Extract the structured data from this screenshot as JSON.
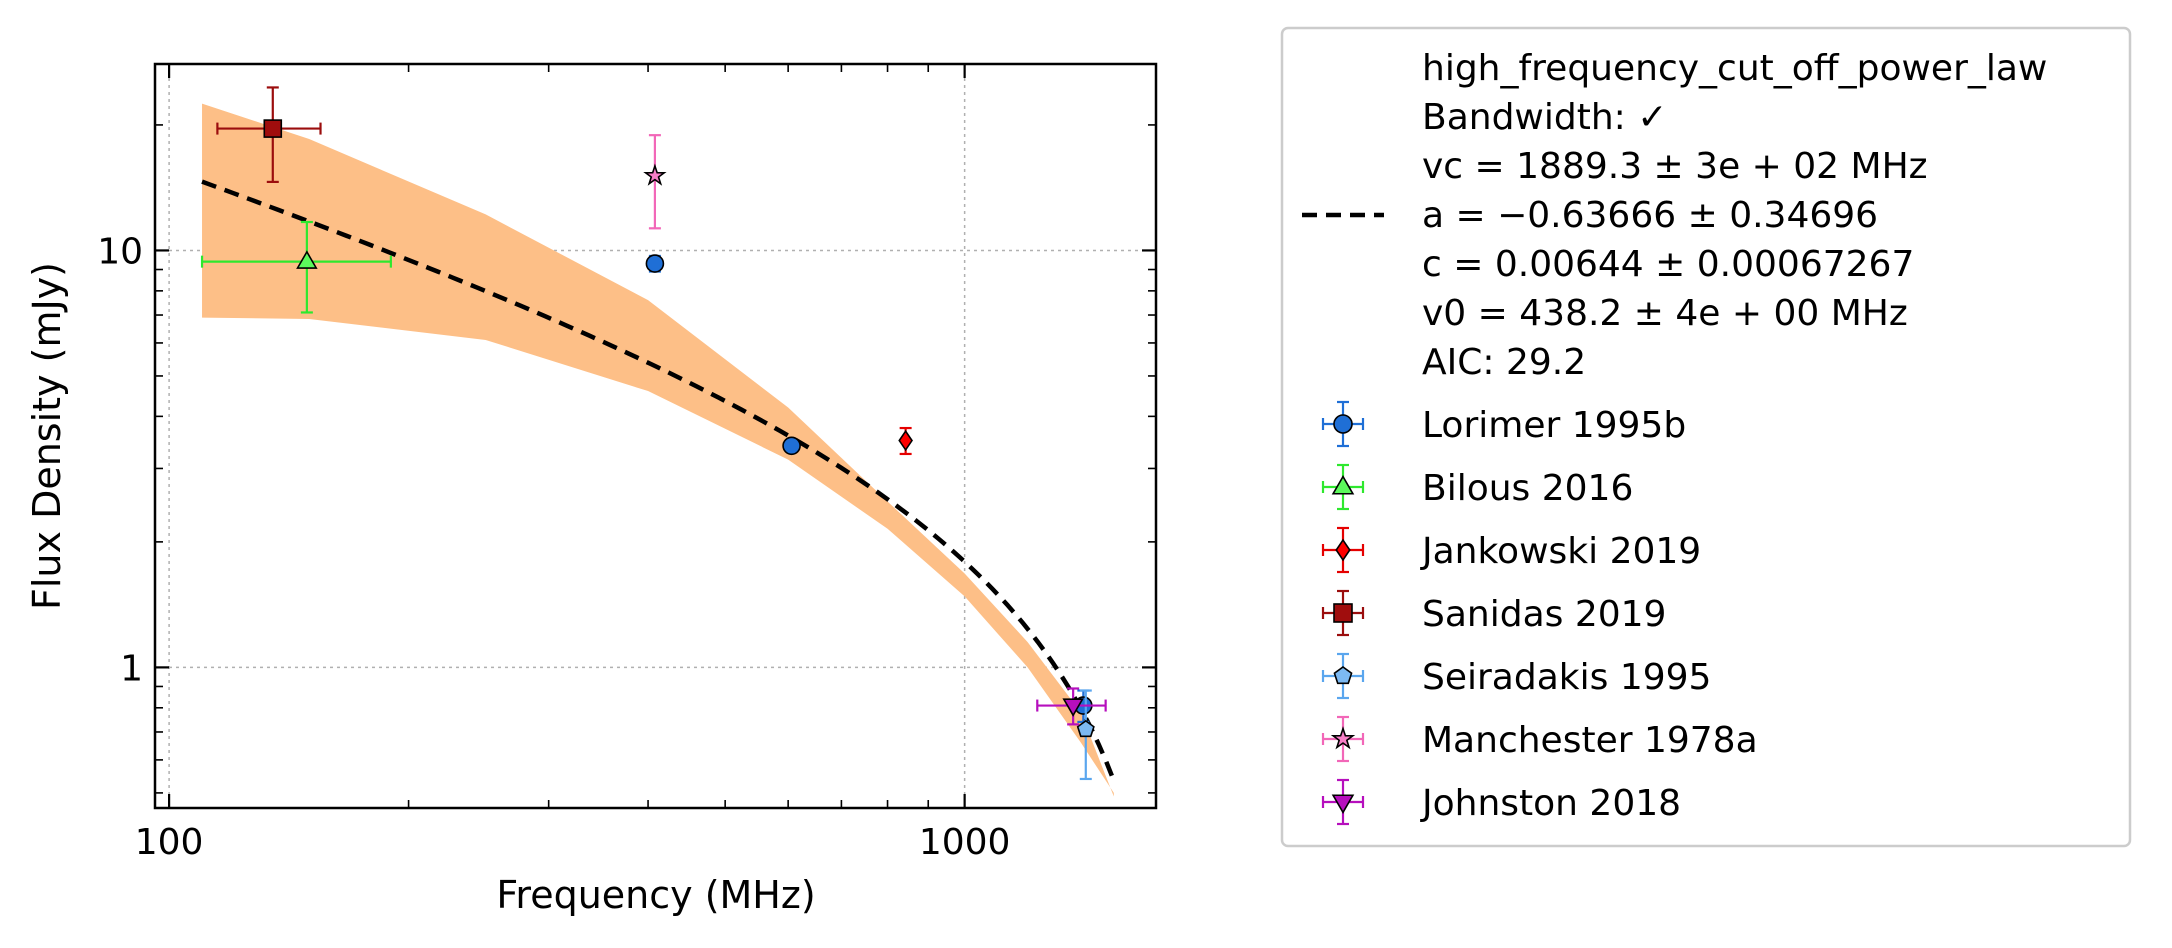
{
  "chart_data": {
    "type": "scatter",
    "xlabel": "Frequency (MHz)",
    "ylabel": "Flux Density (mJy)",
    "xscale": "log",
    "yscale": "log",
    "xlim": [
      96,
      1740
    ],
    "ylim": [
      0.46,
      28
    ],
    "xticks": [
      {
        "value": 100,
        "label": "100"
      },
      {
        "value": 1000,
        "label": "1000"
      }
    ],
    "yticks": [
      {
        "value": 1,
        "label": "1"
      },
      {
        "value": 10,
        "label": "10"
      }
    ],
    "grid": true,
    "legend_position": "outside-right",
    "fit": {
      "label_lines": [
        "high_frequency_cut_off_power_law",
        "Bandwidth: ✓",
        "vc = 1889.3 ± 3e + 02 MHz",
        "a = −0.63666 ± 0.34696",
        "c = 0.00644 ± 0.00067267",
        "v0 = 438.2 ± 4e + 00 MHz",
        "AIC: 29.2"
      ],
      "vc": 1889.3,
      "a": -0.63666,
      "c": 0.00644,
      "v0": 438.2,
      "x_range": [
        110,
        1540
      ],
      "line_color": "#000000",
      "band_color": "#fdbf87",
      "band_upper": [
        [
          110,
          22.5
        ],
        [
          150,
          18.5
        ],
        [
          250,
          12.2
        ],
        [
          400,
          7.6
        ],
        [
          600,
          4.2
        ],
        [
          800,
          2.5
        ],
        [
          1000,
          1.68
        ],
        [
          1200,
          1.15
        ],
        [
          1400,
          0.78
        ],
        [
          1540,
          0.49
        ]
      ],
      "band_lower": [
        [
          110,
          6.9
        ],
        [
          150,
          6.85
        ],
        [
          250,
          6.1
        ],
        [
          400,
          4.6
        ],
        [
          600,
          3.15
        ],
        [
          800,
          2.15
        ],
        [
          1000,
          1.48
        ],
        [
          1200,
          1.0
        ],
        [
          1400,
          0.66
        ],
        [
          1540,
          0.5
        ]
      ]
    },
    "series": [
      {
        "name": "Lorimer 1995b",
        "marker": "circle",
        "color": "#1f6fd6",
        "errcolor": "#1f6fd6",
        "points": [
          {
            "x": 408,
            "y": 9.3,
            "yerr": [
              0.4,
              0.4
            ]
          },
          {
            "x": 606,
            "y": 3.4,
            "yerr": [
              0.1,
              0.1
            ]
          },
          {
            "x": 1410,
            "y": 0.81,
            "yerr": [
              0.07,
              0.07
            ]
          }
        ]
      },
      {
        "name": "Bilous 2016",
        "marker": "triangle-up",
        "color": "#5cf95c",
        "errcolor": "#2ee82e",
        "points": [
          {
            "x": 149,
            "y": 9.4,
            "yerr": [
              2.3,
              2.3
            ],
            "xerr": [
              39,
              41
            ]
          }
        ]
      },
      {
        "name": "Jankowski 2019",
        "marker": "diamond",
        "color": "#ff0000",
        "errcolor": "#e50000",
        "points": [
          {
            "x": 843,
            "y": 3.5,
            "yerr": [
              0.25,
              0.25
            ]
          }
        ]
      },
      {
        "name": "Sanidas 2019",
        "marker": "square",
        "color": "#a00d0d",
        "errcolor": "#9b0d0d",
        "points": [
          {
            "x": 135,
            "y": 19.6,
            "yerr": [
              5,
              5
            ],
            "xerr": [
              20,
              20
            ]
          }
        ]
      },
      {
        "name": "Seiradakis 1995",
        "marker": "pentagon",
        "color": "#7cb9f2",
        "errcolor": "#5aa6ee",
        "points": [
          {
            "x": 1420,
            "y": 0.71,
            "yerr": [
              0.17,
              0.17
            ]
          }
        ]
      },
      {
        "name": "Manchester 1978a",
        "marker": "star",
        "color": "#f77fc7",
        "errcolor": "#f267b8",
        "points": [
          {
            "x": 408,
            "y": 15.1,
            "yerr": [
              3.8,
              3.8
            ]
          }
        ]
      },
      {
        "name": "Johnston 2018",
        "marker": "triangle-down",
        "color": "#b60fbd",
        "errcolor": "#b60fbd",
        "points": [
          {
            "x": 1369,
            "y": 0.81,
            "yerr": [
              0.08,
              0.08
            ],
            "xerr": [
              135,
              135
            ]
          }
        ]
      }
    ]
  }
}
